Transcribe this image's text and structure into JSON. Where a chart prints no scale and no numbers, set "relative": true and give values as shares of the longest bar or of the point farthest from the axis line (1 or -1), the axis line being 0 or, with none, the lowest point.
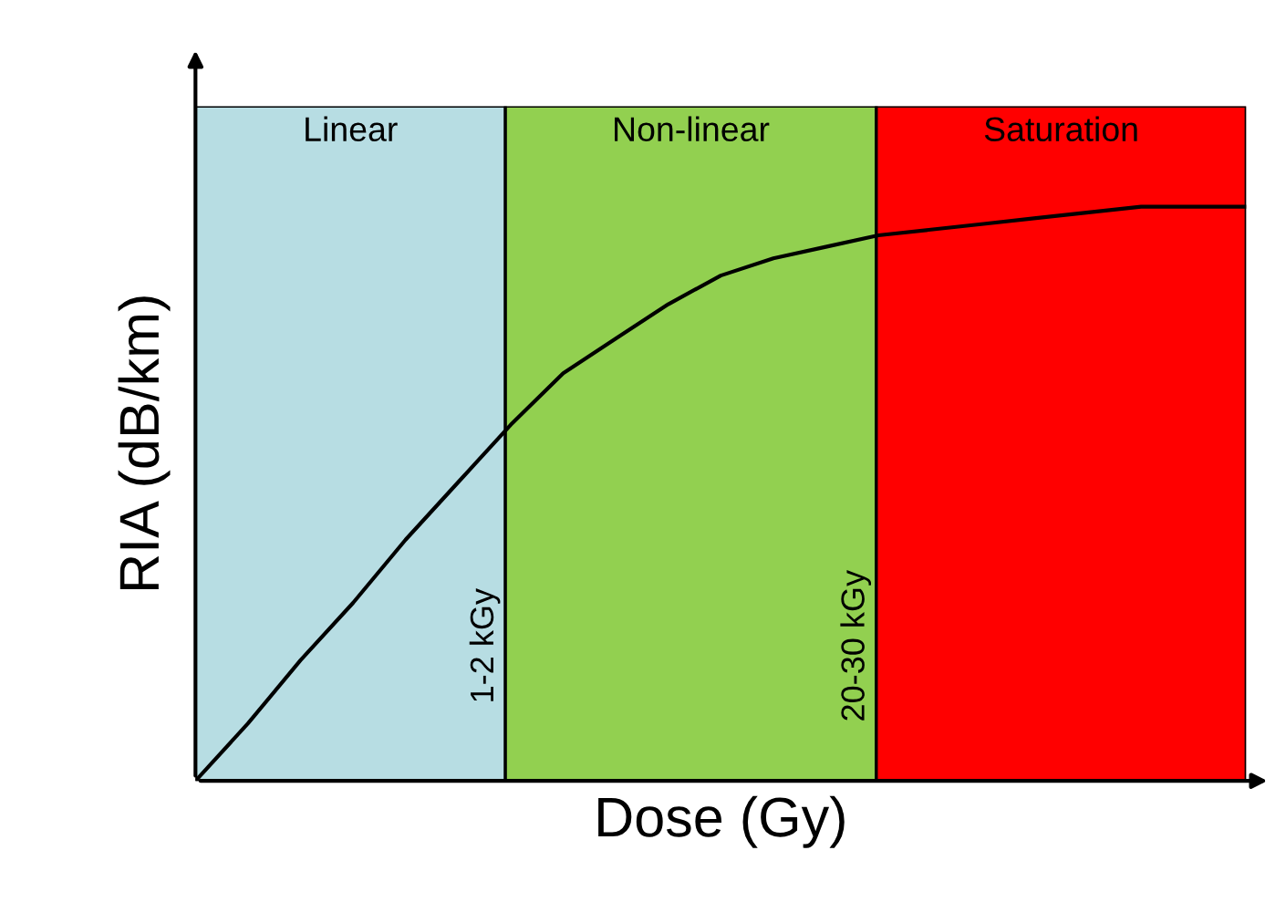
{
  "chart_data": {
    "type": "line",
    "relative": true,
    "xlabel": "Dose (Gy)",
    "ylabel": "RIA (dB/km)",
    "categories": [
      null,
      null,
      null,
      null,
      null,
      null,
      null,
      null,
      null,
      null,
      null,
      null,
      null,
      null,
      null,
      null,
      null,
      null,
      null,
      null,
      null
    ],
    "series": [
      {
        "color": "#000000",
        "values": [
          0,
          0.1,
          0.21,
          0.31,
          0.42,
          0.52,
          0.62,
          0.71,
          0.77,
          0.83,
          0.88,
          0.91,
          0.93,
          0.95,
          0.96,
          0.97,
          0.98,
          0.99,
          1.0,
          1.0,
          1.0
        ]
      }
    ],
    "annotations": [
      "Linear",
      "Non-linear",
      "Saturation",
      "1-2 kGy",
      "20-30 kGy"
    ],
    "legend": false,
    "marker": "none",
    "line_style": "solid"
  }
}
